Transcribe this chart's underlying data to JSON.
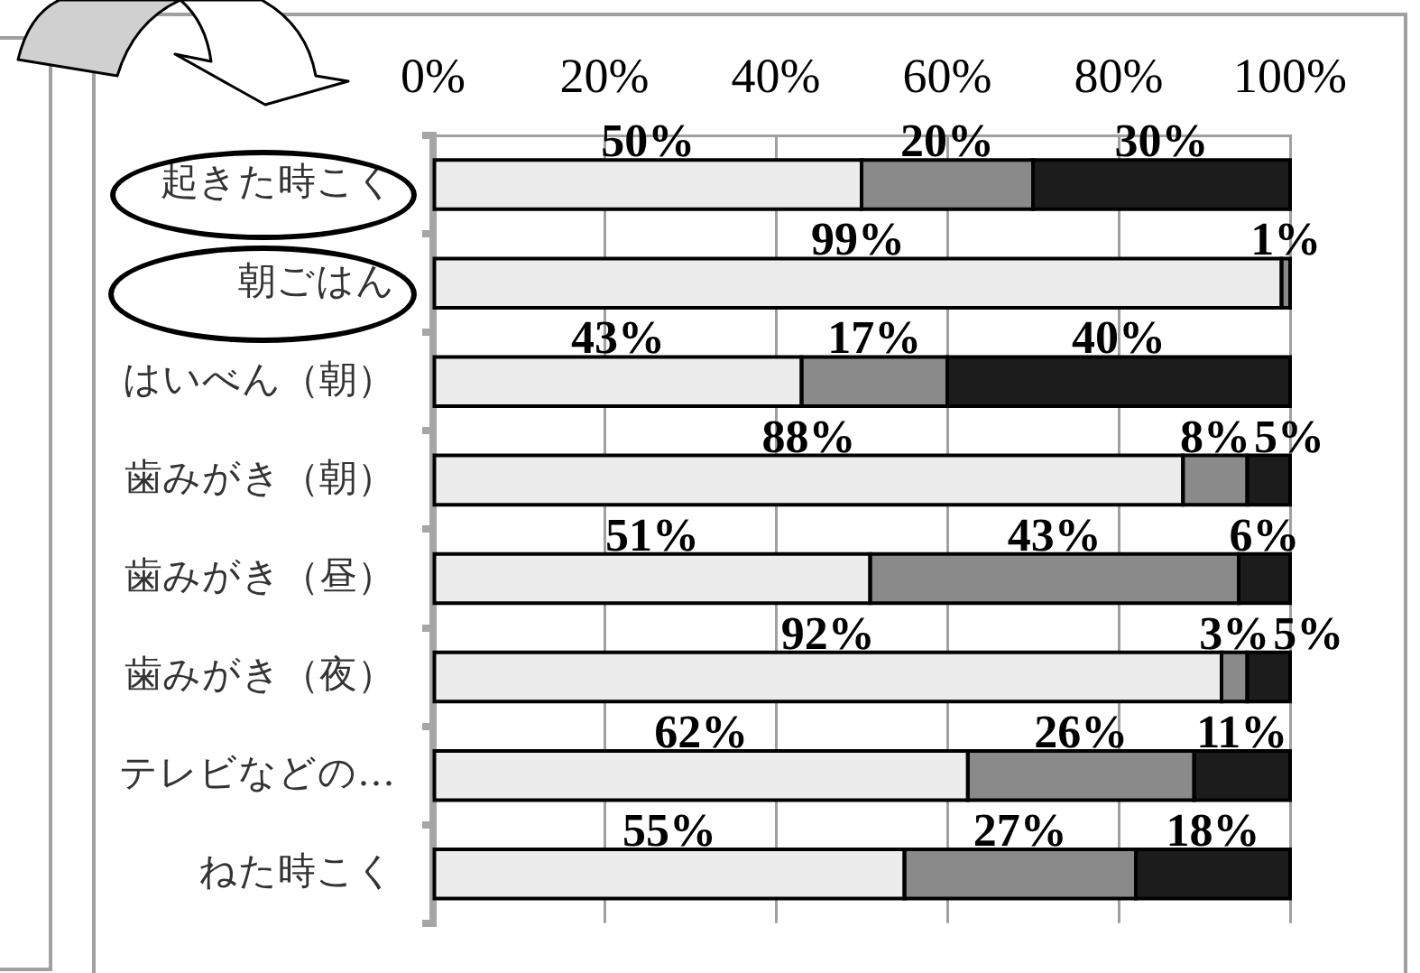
{
  "chart_data": {
    "type": "bar",
    "orientation": "horizontal",
    "stacked": true,
    "categories": [
      "起きた時こく",
      "朝ごはん",
      "はいべん（朝）",
      "歯みがき（朝）",
      "歯みがき（昼）",
      "歯みがき（夜）",
      "テレビなどの…",
      "ねた時こく"
    ],
    "series": [
      {
        "color": "#ececec",
        "values": [
          50,
          99,
          43,
          87.5,
          51,
          92,
          62.4,
          55
        ],
        "value_labels": [
          "50%",
          "99%",
          "43%",
          "88%",
          "51%",
          "92%",
          "62%",
          "55%"
        ]
      },
      {
        "color": "#8a8a8a",
        "values": [
          20,
          1,
          17,
          7.5,
          43,
          3,
          26.4,
          27
        ],
        "value_labels": [
          "20%",
          "1%",
          "17%",
          "8%",
          "43%",
          "3%",
          "26%",
          "27%"
        ]
      },
      {
        "color": "#1c1c1c",
        "values": [
          30,
          0,
          40,
          5,
          6,
          5,
          11.2,
          18
        ],
        "value_labels": [
          "30%",
          null,
          "40%",
          "5%",
          "6%",
          "5%",
          "11%",
          "18%"
        ]
      }
    ],
    "xlim": [
      0,
      100
    ],
    "xticks": [
      {
        "value": 0,
        "label": "0%"
      },
      {
        "value": 20,
        "label": "20%"
      },
      {
        "value": 40,
        "label": "40%"
      },
      {
        "value": 60,
        "label": "60%"
      },
      {
        "value": 80,
        "label": "80%"
      },
      {
        "value": 100,
        "label": "100%"
      }
    ],
    "grid": "x"
  }
}
